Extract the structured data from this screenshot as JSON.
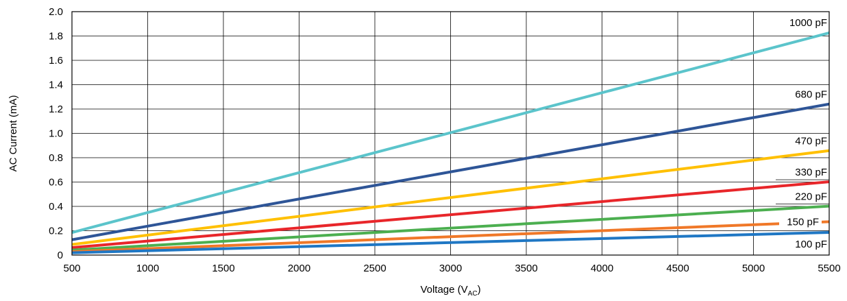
{
  "chart_data": {
    "type": "line",
    "title": "",
    "xlabel": "Voltage (V",
    "xlabel_sub": "AC",
    "xlabel_close": ")",
    "ylabel": "AC Current (mA)",
    "xlim": [
      500,
      5500
    ],
    "ylim": [
      0,
      2.0
    ],
    "xticks": [
      "500",
      "1000",
      "1500",
      "2000",
      "2500",
      "3000",
      "3500",
      "4000",
      "4500",
      "5000",
      "5500"
    ],
    "yticks": [
      "0",
      "0.2",
      "0.4",
      "0.6",
      "0.8",
      "1.0",
      "1.2",
      "1.4",
      "1.6",
      "1.8",
      "2.0"
    ],
    "grid": true,
    "x": [
      500,
      5500
    ],
    "series": [
      {
        "name": "1000 pF",
        "color": "#5BC4CB",
        "values": [
          0.185,
          1.826
        ]
      },
      {
        "name": "680 pF",
        "color": "#2E5597",
        "values": [
          0.126,
          1.241
        ]
      },
      {
        "name": "470 pF",
        "color": "#FFC000",
        "values": [
          0.087,
          0.858
        ]
      },
      {
        "name": "330 pF",
        "color": "#E8262A",
        "values": [
          0.061,
          0.602
        ]
      },
      {
        "name": "220 pF",
        "color": "#4CAF50",
        "values": [
          0.041,
          0.402
        ]
      },
      {
        "name": "150 pF",
        "color": "#F07828",
        "values": [
          0.028,
          0.274
        ]
      },
      {
        "name": "100 pF",
        "color": "#1F77C4",
        "values": [
          0.019,
          0.186
        ]
      }
    ]
  }
}
